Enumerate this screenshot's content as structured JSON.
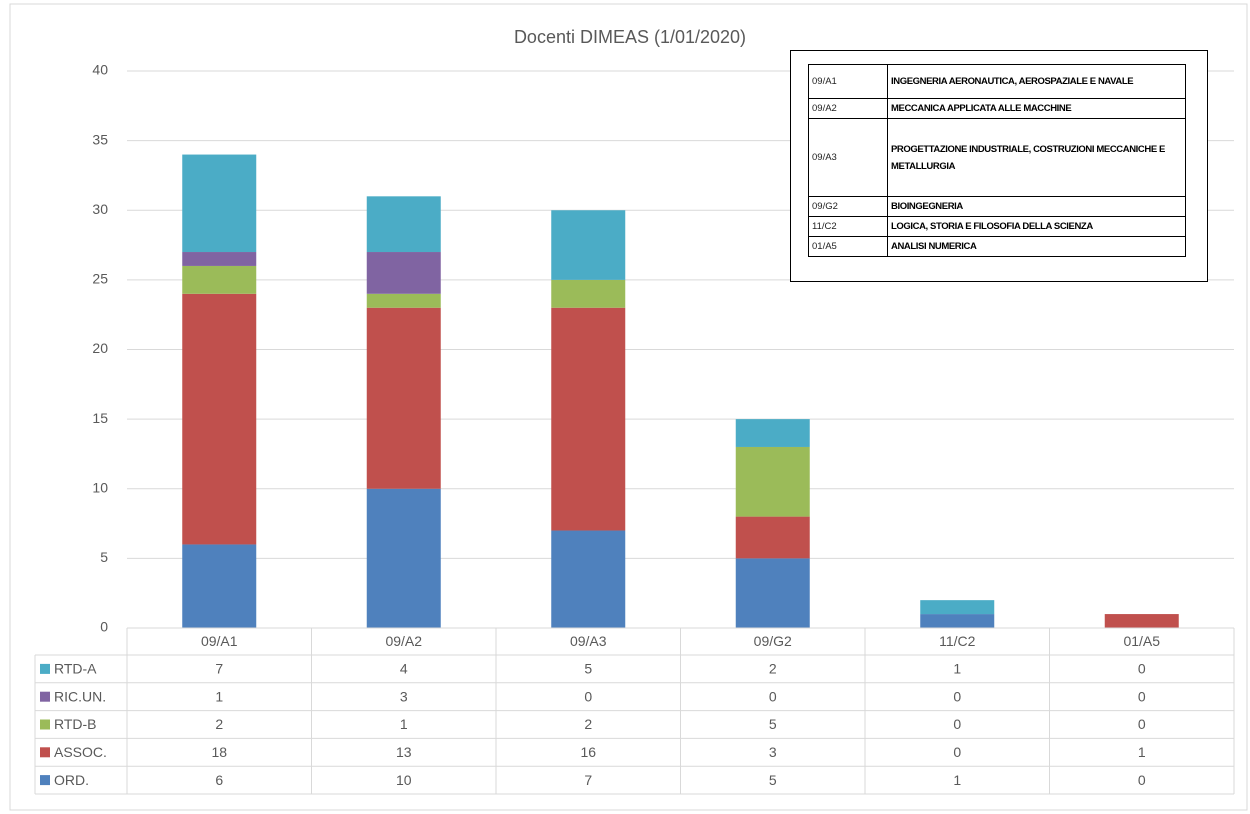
{
  "chart_data": {
    "type": "stacked_bar",
    "title": "Docenti DIMEAS (1/01/2020)",
    "categories": [
      "09/A1",
      "09/A2",
      "09/A3",
      "09/G2",
      "11/C2",
      "01/A5"
    ],
    "series": [
      {
        "name": "ORD.",
        "color": "#4f81bd",
        "values": [
          6,
          10,
          7,
          5,
          1,
          0
        ]
      },
      {
        "name": "ASSOC.",
        "color": "#c0504d",
        "values": [
          18,
          13,
          16,
          3,
          0,
          1
        ]
      },
      {
        "name": "RTD-B",
        "color": "#9bbb59",
        "values": [
          2,
          1,
          2,
          5,
          0,
          0
        ]
      },
      {
        "name": "RIC.UN.",
        "color": "#8064a2",
        "values": [
          1,
          3,
          0,
          0,
          0,
          0
        ]
      },
      {
        "name": "RTD-A",
        "color": "#4bacc6",
        "values": [
          7,
          4,
          5,
          2,
          1,
          0
        ]
      }
    ],
    "ylim": [
      0,
      40
    ],
    "yticks": [
      0,
      5,
      10,
      15,
      20,
      25,
      30,
      35,
      40
    ],
    "grid": true
  },
  "legend_table": {
    "rows": [
      [
        "09/A1",
        "INGEGNERIA AERONAUTICA, AEROSPAZIALE E NAVALE"
      ],
      [
        "09/A2",
        "MECCANICA APPLICATA ALLE MACCHINE"
      ],
      [
        "09/A3",
        "PROGETTAZIONE INDUSTRIALE, COSTRUZIONI MECCANICHE E METALLURGIA"
      ],
      [
        "09/G2",
        "BIOINGEGNERIA"
      ],
      [
        "11/C2",
        "LOGICA, STORIA E FILOSOFIA DELLA SCIENZA"
      ],
      [
        "01/A5",
        "ANALISI NUMERICA"
      ]
    ]
  }
}
